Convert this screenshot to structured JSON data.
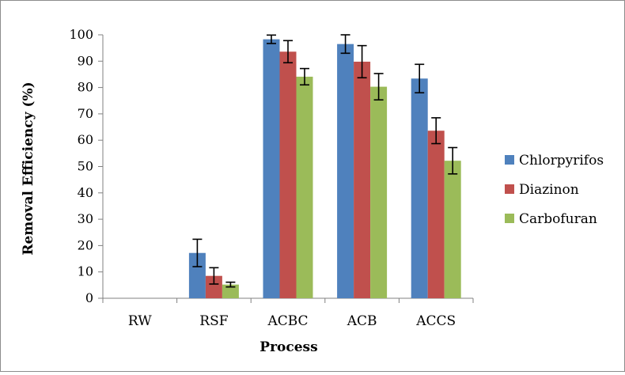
{
  "chart_data": {
    "type": "bar",
    "title": "",
    "xlabel": "Process",
    "ylabel": "Removal Efficiency (%)",
    "ylim": [
      0,
      100
    ],
    "yticks": [
      0,
      10,
      20,
      30,
      40,
      50,
      60,
      70,
      80,
      90,
      100
    ],
    "grid": false,
    "legend_position": "right",
    "categories": [
      "RW",
      "RSF",
      "ACBC",
      "ACB",
      "ACCS"
    ],
    "series": [
      {
        "name": "Chlorpyrifos",
        "color": "#4F81BD",
        "values": [
          0,
          17.2,
          98.3,
          96.5,
          83.4
        ],
        "errors": [
          0,
          5.2,
          1.6,
          3.5,
          5.4
        ]
      },
      {
        "name": "Diazinon",
        "color": "#C0504D",
        "values": [
          0,
          8.5,
          93.6,
          89.8,
          63.6
        ],
        "errors": [
          0,
          3.1,
          4.2,
          6.1,
          4.9
        ]
      },
      {
        "name": "Carbofuran",
        "color": "#9BBB59",
        "values": [
          0,
          5.2,
          84.1,
          80.3,
          52.2
        ],
        "errors": [
          0,
          0.9,
          3.1,
          5.0,
          5.0
        ]
      }
    ]
  }
}
